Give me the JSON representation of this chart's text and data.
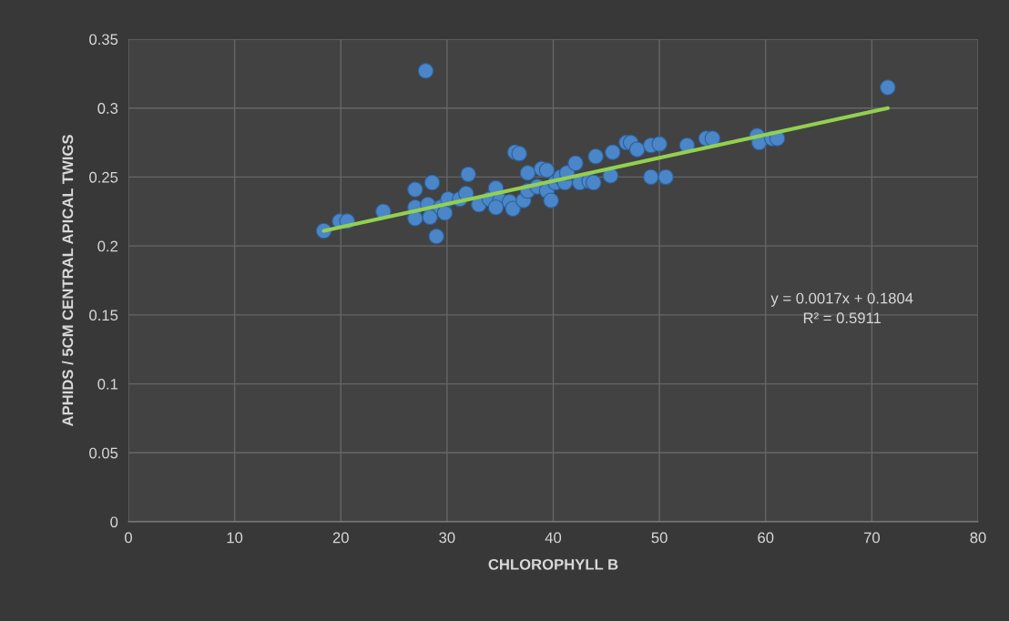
{
  "chart_data": {
    "type": "scatter",
    "xlabel": "CHLOROPHYLL B",
    "ylabel": "APHIDS / 5CM CENTRAL APICAL TWIGS",
    "xlim": [
      0,
      80
    ],
    "xticks": [
      0,
      10,
      20,
      30,
      40,
      50,
      60,
      70,
      80
    ],
    "ylim": [
      0,
      0.35
    ],
    "yticks": [
      0,
      0.05,
      0.1,
      0.15,
      0.2,
      0.25,
      0.3,
      0.35
    ],
    "grid": true,
    "legend": false,
    "marker": "circle",
    "annotations": [
      "y = 0.0017x + 0.1804\nR² = 0.5911"
    ],
    "series": [
      {
        "color": "#4a86c8",
        "x": [
          18.4,
          19.9,
          20.6,
          24.0,
          27.0,
          27.0,
          27.0,
          28.0,
          28.6,
          28.2,
          28.4,
          29.0,
          29.4,
          29.8,
          30.1,
          31.2,
          32.0,
          31.8,
          33.0,
          34.0,
          34.6,
          35.0,
          35.9,
          34.6,
          36.2,
          36.4,
          36.8,
          37.2,
          37.6,
          37.6,
          38.5,
          38.9,
          39.4,
          39.4,
          39.8,
          40.2,
          40.7,
          41.1,
          41.3,
          42.1,
          42.5,
          43.4,
          43.8,
          44.0,
          45.4,
          45.6,
          46.9,
          47.3,
          47.9,
          49.2,
          49.2,
          50.0,
          50.6,
          52.6,
          54.4,
          55.0,
          59.2,
          59.4,
          60.6,
          61.1,
          71.5
        ],
        "values": [
          0.211,
          0.218,
          0.218,
          0.225,
          0.241,
          0.228,
          0.22,
          0.327,
          0.246,
          0.23,
          0.221,
          0.207,
          0.228,
          0.224,
          0.234,
          0.234,
          0.252,
          0.238,
          0.23,
          0.234,
          0.242,
          0.233,
          0.232,
          0.228,
          0.227,
          0.268,
          0.267,
          0.233,
          0.24,
          0.253,
          0.243,
          0.256,
          0.255,
          0.24,
          0.233,
          0.246,
          0.25,
          0.246,
          0.253,
          0.26,
          0.246,
          0.247,
          0.246,
          0.265,
          0.251,
          0.268,
          0.275,
          0.275,
          0.27,
          0.25,
          0.273,
          0.274,
          0.25,
          0.273,
          0.278,
          0.278,
          0.28,
          0.275,
          0.278,
          0.278,
          0.315
        ]
      },
      {
        "type": "line",
        "color": "#92d050",
        "marker": "none",
        "x": [
          18.4,
          71.5
        ],
        "values": [
          0.211,
          0.3
        ]
      }
    ]
  }
}
